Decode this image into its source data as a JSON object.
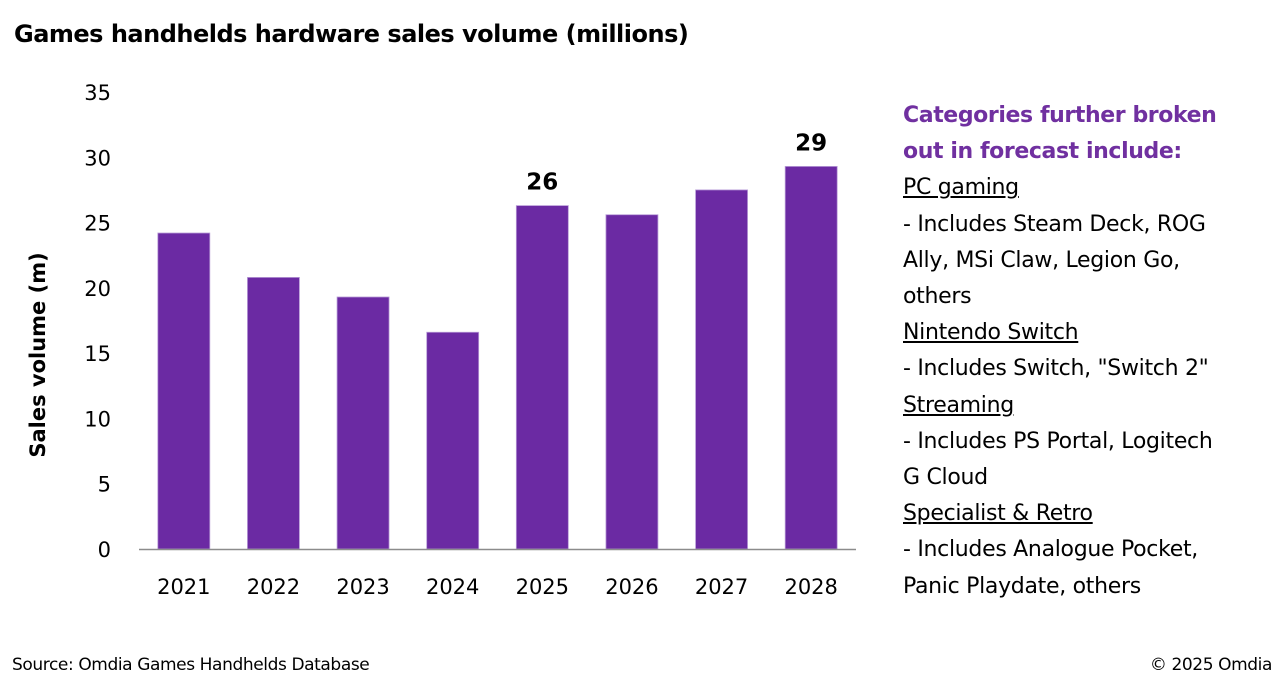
{
  "chart_data": {
    "type": "bar",
    "title": "Games handhelds hardware sales volume (millions)",
    "xlabel": "",
    "ylabel": "Sales volume (m)",
    "categories": [
      "2021",
      "2022",
      "2023",
      "2024",
      "2025",
      "2026",
      "2027",
      "2028"
    ],
    "values": [
      24.2,
      20.8,
      19.3,
      16.6,
      26.3,
      25.6,
      27.5,
      29.3
    ],
    "data_labels": [
      null,
      null,
      null,
      null,
      "26",
      null,
      null,
      "29"
    ],
    "ylim": [
      0,
      35
    ],
    "yticks": [
      0,
      5,
      10,
      15,
      20,
      25,
      30,
      35
    ],
    "grid": false,
    "legend": "none",
    "bar_color": "#6b2aa3"
  },
  "notes": {
    "heading_lines": [
      "Categories further broken",
      "out in forecast include:"
    ],
    "heading_color": "#7030a0",
    "sections": [
      {
        "category": "PC gaming",
        "lines": [
          "- Includes Steam Deck, ROG",
          "Ally, MSi Claw, Legion Go,",
          "others"
        ]
      },
      {
        "category": "Nintendo Switch",
        "lines": [
          "- Includes Switch, \"Switch 2\""
        ]
      },
      {
        "category": "Streaming",
        "lines": [
          "- Includes PS Portal, Logitech",
          "G Cloud"
        ]
      },
      {
        "category": "Specialist & Retro",
        "lines": [
          "- Includes Analogue Pocket,",
          "Panic Playdate, others"
        ]
      }
    ]
  },
  "footer": {
    "source": "Source: Omdia Games Handhelds Database",
    "copyright": "© 2025 Omdia"
  }
}
